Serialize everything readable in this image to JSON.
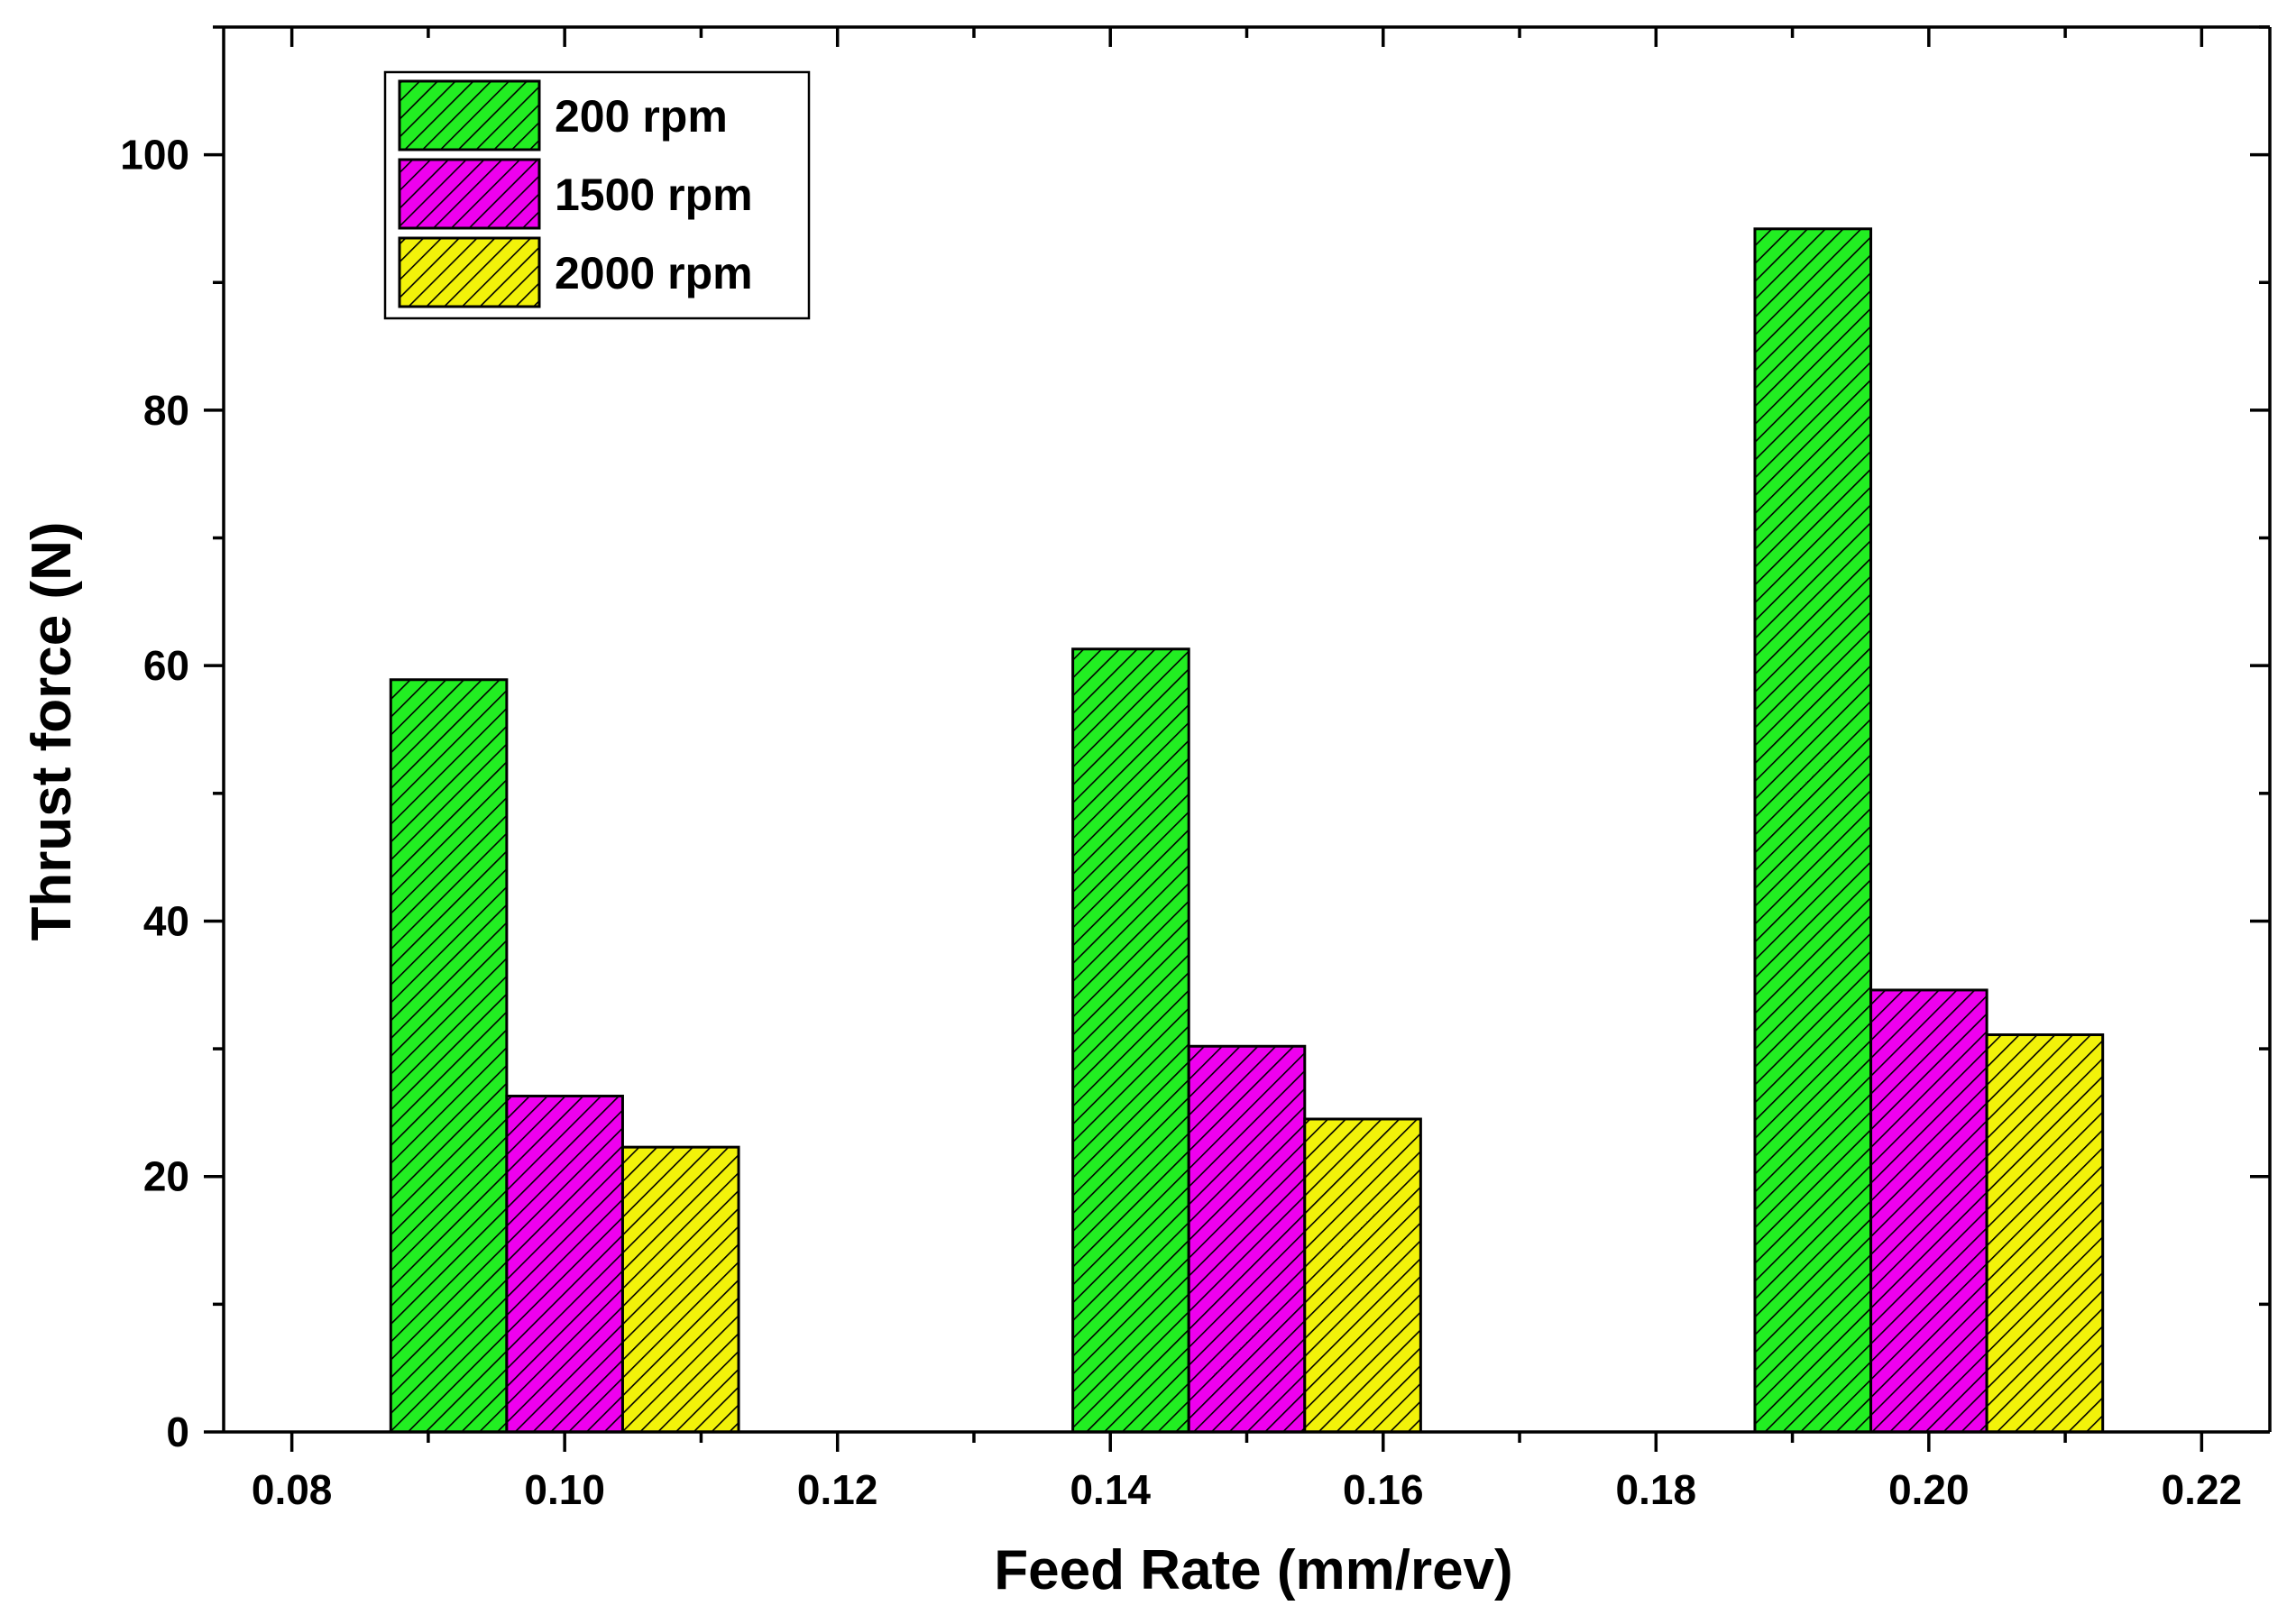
{
  "chart_data": {
    "type": "bar",
    "title": "",
    "xlabel": "Feed Rate (mm/rev)",
    "ylabel": "Thrust force (N)",
    "categories": [
      0.1,
      0.15,
      0.2
    ],
    "xlim": [
      0.075,
      0.225
    ],
    "ylim": [
      0,
      110
    ],
    "xticks": [
      "0.08",
      "0.10",
      "0.12",
      "0.14",
      "0.16",
      "0.18",
      "0.20",
      "0.22"
    ],
    "yticks": [
      "0",
      "20",
      "40",
      "60",
      "80",
      "100"
    ],
    "series": [
      {
        "name": "200 rpm",
        "color": "#22ee22",
        "values": [
          58.9,
          61.3,
          94.2
        ]
      },
      {
        "name": "1500 rpm",
        "color": "#ee00ee",
        "values": [
          26.3,
          30.2,
          34.6
        ]
      },
      {
        "name": "2000 rpm",
        "color": "#f2f20a",
        "values": [
          22.3,
          24.5,
          31.1
        ]
      }
    ],
    "legend_position": "top-left",
    "hatch": "diagonal",
    "grid": false
  }
}
